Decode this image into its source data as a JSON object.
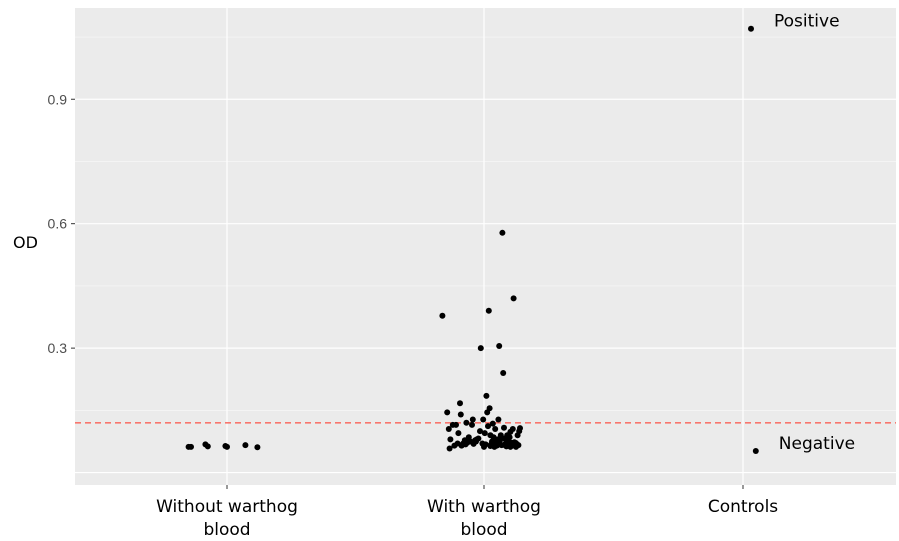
{
  "chart_data": {
    "type": "scatter",
    "title": "",
    "xlabel": "",
    "ylabel": "OD",
    "categories": [
      "Without warthog\nblood",
      "With warthog\nblood",
      "Controls"
    ],
    "y_ticks": [
      0.3,
      0.6,
      0.9
    ],
    "y_tick_labels": [
      "0.3",
      "0.6",
      "0.9"
    ],
    "ylim": [
      -0.03,
      1.12
    ],
    "grid": true,
    "cutoff_line": {
      "value": 0.12,
      "color": "#f8766d",
      "style": "dashed"
    },
    "colors": {
      "panel": "#ebebeb",
      "grid": "#ffffff",
      "point": "#000000"
    },
    "series": [
      {
        "category": "Without warthog\nblood",
        "points": [
          [
            -0.48,
            0.062
          ],
          [
            -0.45,
            0.062
          ],
          [
            -0.27,
            0.068
          ],
          [
            -0.24,
            0.063
          ],
          [
            -0.02,
            0.064
          ],
          [
            0.0,
            0.062
          ],
          [
            0.23,
            0.066
          ],
          [
            0.38,
            0.061
          ]
        ]
      },
      {
        "category": "With warthog\nblood",
        "points": [
          [
            -0.52,
            0.378
          ],
          [
            -0.46,
            0.145
          ],
          [
            -0.44,
            0.105
          ],
          [
            -0.43,
            0.058
          ],
          [
            -0.42,
            0.08
          ],
          [
            -0.39,
            0.115
          ],
          [
            -0.37,
            0.065
          ],
          [
            -0.35,
            0.115
          ],
          [
            -0.33,
            0.07
          ],
          [
            -0.32,
            0.095
          ],
          [
            -0.3,
            0.167
          ],
          [
            -0.29,
            0.14
          ],
          [
            -0.28,
            0.065
          ],
          [
            -0.26,
            0.07
          ],
          [
            -0.24,
            0.078
          ],
          [
            -0.22,
            0.12
          ],
          [
            -0.21,
            0.072
          ],
          [
            -0.19,
            0.085
          ],
          [
            -0.17,
            0.075
          ],
          [
            -0.15,
            0.115
          ],
          [
            -0.14,
            0.128
          ],
          [
            -0.13,
            0.069
          ],
          [
            -0.11,
            0.078
          ],
          [
            -0.09,
            0.08
          ],
          [
            -0.07,
            0.082
          ],
          [
            -0.05,
            0.1
          ],
          [
            -0.04,
            0.3
          ],
          [
            -0.02,
            0.07
          ],
          [
            -0.01,
            0.128
          ],
          [
            0.01,
            0.095
          ],
          [
            0.03,
            0.185
          ],
          [
            0.04,
            0.145
          ],
          [
            0.05,
            0.112
          ],
          [
            0.06,
            0.39
          ],
          [
            0.07,
            0.155
          ],
          [
            0.08,
            0.09
          ],
          [
            0.09,
            0.068
          ],
          [
            0.1,
            0.075
          ],
          [
            0.11,
            0.118
          ],
          [
            0.12,
            0.085
          ],
          [
            0.13,
            0.062
          ],
          [
            0.14,
            0.105
          ],
          [
            0.15,
            0.07
          ],
          [
            0.16,
            0.065
          ],
          [
            0.17,
            0.08
          ],
          [
            0.18,
            0.128
          ],
          [
            0.19,
            0.305
          ],
          [
            0.2,
            0.068
          ],
          [
            0.21,
            0.09
          ],
          [
            0.22,
            0.066
          ],
          [
            0.23,
            0.578
          ],
          [
            0.24,
            0.24
          ],
          [
            0.25,
            0.108
          ],
          [
            0.26,
            0.082
          ],
          [
            0.27,
            0.07
          ],
          [
            0.28,
            0.063
          ],
          [
            0.29,
            0.09
          ],
          [
            0.3,
            0.075
          ],
          [
            0.31,
            0.068
          ],
          [
            0.32,
            0.085
          ],
          [
            0.33,
            0.098
          ],
          [
            0.34,
            0.072
          ],
          [
            0.35,
            0.065
          ],
          [
            0.36,
            0.105
          ],
          [
            0.37,
            0.42
          ],
          [
            0.38,
            0.073
          ],
          [
            0.39,
            0.07
          ],
          [
            0.4,
            0.062
          ],
          [
            0.41,
            0.068
          ],
          [
            0.42,
            0.09
          ],
          [
            0.43,
            0.066
          ],
          [
            0.44,
            0.1
          ],
          [
            0.45,
            0.107
          ],
          [
            -0.23,
            0.068
          ],
          [
            -0.1,
            0.075
          ],
          [
            0.0,
            0.062
          ],
          [
            0.02,
            0.068
          ],
          [
            0.08,
            0.064
          ],
          [
            0.14,
            0.072
          ],
          [
            0.2,
            0.078
          ],
          [
            0.26,
            0.066
          ],
          [
            0.33,
            0.062
          ],
          [
            0.4,
            0.071
          ]
        ]
      },
      {
        "category": "Controls",
        "points": [
          [
            0.1,
            1.07
          ],
          [
            0.16,
            0.052
          ]
        ],
        "labels": [
          "Positive",
          "Negative"
        ]
      }
    ]
  }
}
